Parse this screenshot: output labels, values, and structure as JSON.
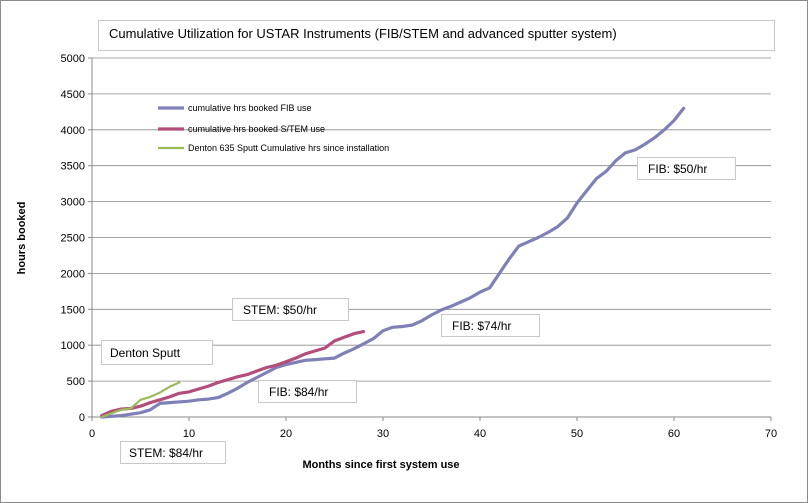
{
  "chart_data": {
    "type": "line",
    "title": "Cumulative Utilization for USTAR Instruments (FIB/STEM and advanced sputter system)",
    "xlabel": "Months since first system use",
    "ylabel": "hours booked",
    "xlim": [
      0,
      70
    ],
    "ylim": [
      0,
      5000
    ],
    "xticks": [
      "0",
      "10",
      "20",
      "30",
      "40",
      "50",
      "60",
      "70"
    ],
    "yticks": [
      "0",
      "500",
      "1000",
      "1500",
      "2000",
      "2500",
      "3000",
      "3500",
      "4000",
      "4500",
      "5000"
    ],
    "grid": "horizontal",
    "legend_position": "top-left",
    "series": [
      {
        "name": "cumulative hrs booked FIB use",
        "color": "#8080b8",
        "x": [
          1,
          3,
          5,
          6,
          7,
          8,
          10,
          11,
          12,
          13,
          14,
          15,
          16,
          17,
          18,
          19,
          20,
          21,
          22,
          23,
          24,
          25,
          26,
          27,
          28,
          29,
          30,
          31,
          32,
          33,
          34,
          35,
          36,
          37,
          38,
          39,
          40,
          41,
          42,
          43,
          44,
          45,
          46,
          47,
          48,
          49,
          50,
          51,
          52,
          53,
          54,
          55,
          56,
          57,
          58,
          59,
          60,
          61
        ],
        "y": [
          0,
          20,
          60,
          100,
          190,
          200,
          220,
          240,
          250,
          270,
          330,
          400,
          480,
          550,
          620,
          690,
          730,
          760,
          790,
          800,
          810,
          820,
          890,
          950,
          1020,
          1090,
          1200,
          1250,
          1260,
          1280,
          1340,
          1420,
          1490,
          1540,
          1600,
          1660,
          1740,
          1800,
          2000,
          2200,
          2380,
          2440,
          2500,
          2570,
          2650,
          2770,
          2980,
          3150,
          3320,
          3420,
          3570,
          3680,
          3720,
          3800,
          3890,
          4000,
          4130,
          4300
        ]
      },
      {
        "name": "cumulative hrs booked S/TEM use",
        "color": "#b34d7a",
        "x": [
          1,
          2,
          3,
          4,
          5,
          6,
          7,
          8,
          9,
          10,
          11,
          12,
          13,
          14,
          15,
          16,
          17,
          18,
          19,
          20,
          21,
          22,
          23,
          24,
          25,
          26,
          27,
          28
        ],
        "y": [
          20,
          80,
          110,
          120,
          150,
          200,
          240,
          280,
          330,
          350,
          390,
          430,
          480,
          520,
          560,
          590,
          640,
          690,
          720,
          770,
          820,
          880,
          920,
          960,
          1060,
          1110,
          1160,
          1190
        ]
      },
      {
        "name": "Denton 635 Sputt Cumulative hrs since installation",
        "color": "#9bbb59",
        "x": [
          1,
          2,
          3,
          4,
          5,
          6,
          7,
          8,
          9
        ],
        "y": [
          0,
          50,
          100,
          120,
          240,
          280,
          340,
          420,
          480
        ]
      }
    ],
    "annotations": [
      {
        "text": "FIB: $50/hr"
      },
      {
        "text": "FIB: $74/hr"
      },
      {
        "text": "FIB: $84/hr"
      },
      {
        "text": "STEM: $50/hr"
      },
      {
        "text": "STEM: $84/hr"
      },
      {
        "text": "Denton Sputt"
      }
    ]
  }
}
